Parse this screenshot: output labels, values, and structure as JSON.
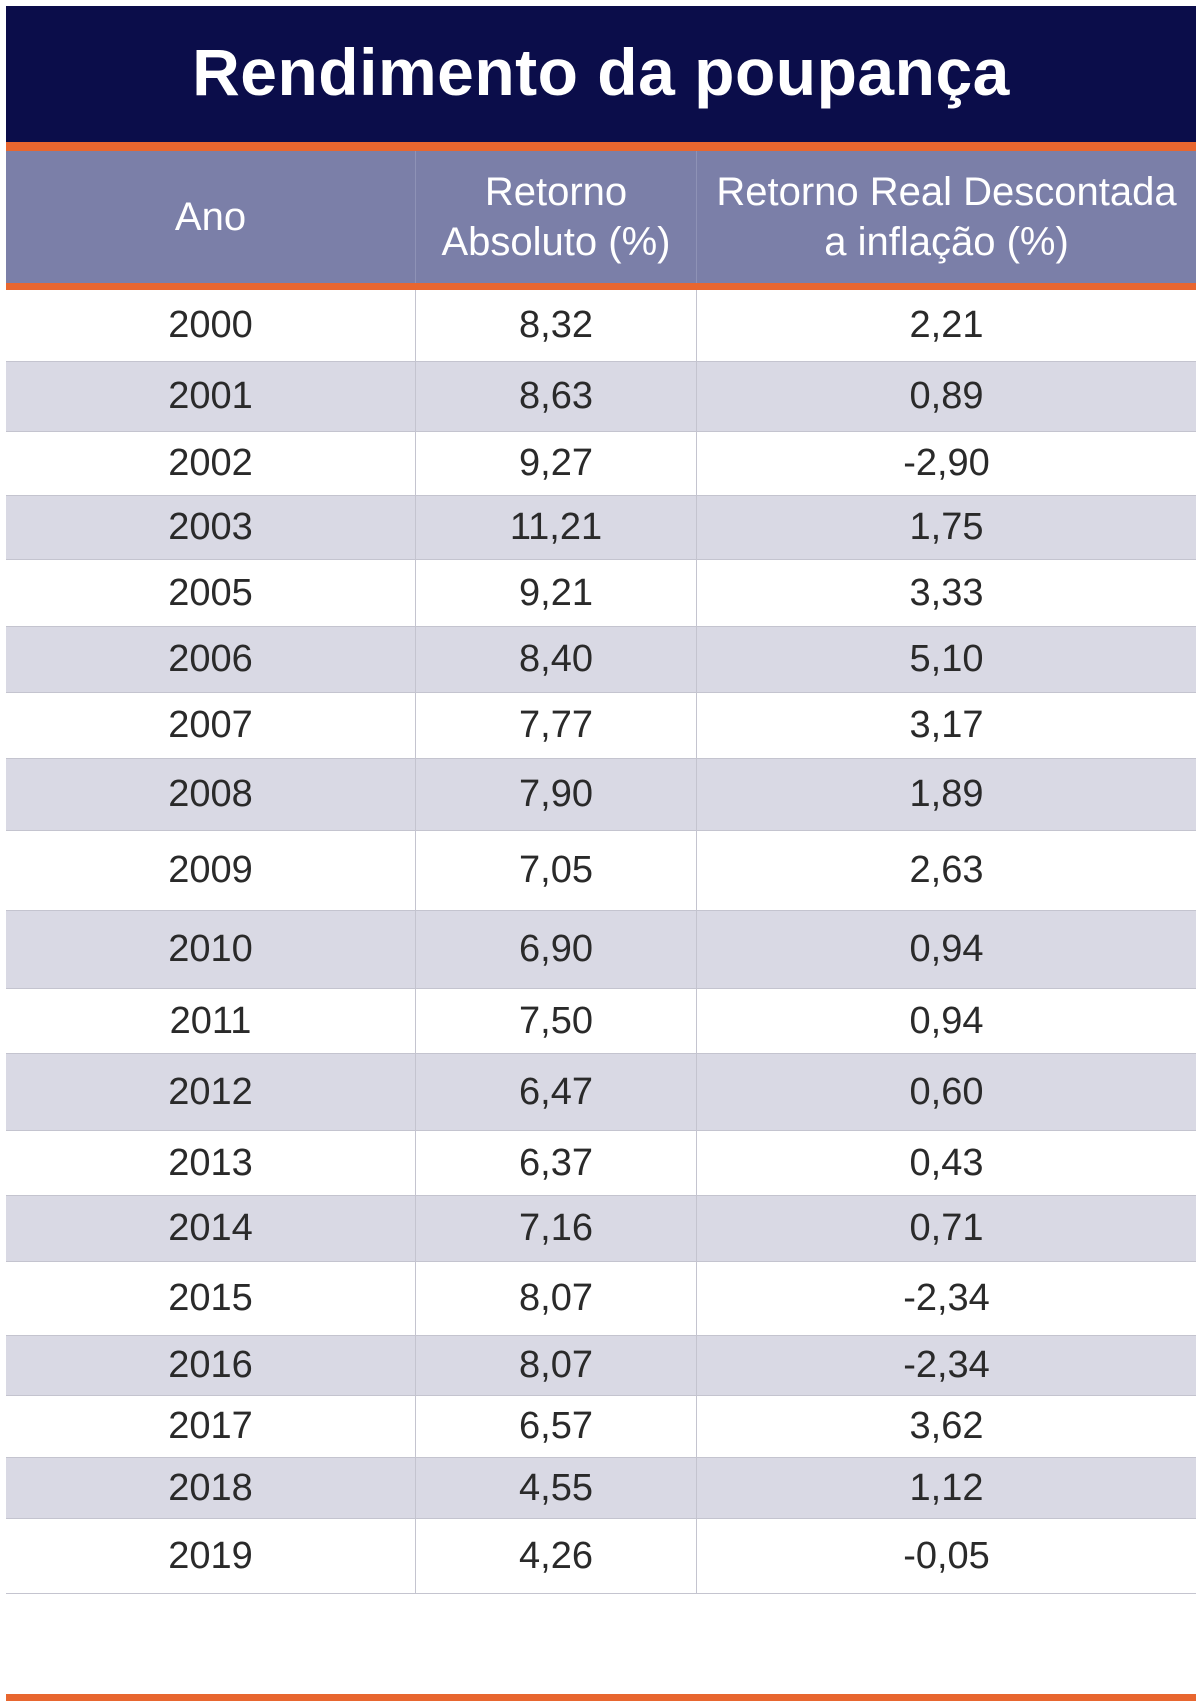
{
  "title": "Rendimento da poupança",
  "colors": {
    "title_background": "#0b0d4a",
    "header_background": "#7b7fa8",
    "accent_line": "#e8662f",
    "stripe": "#d9d9e4"
  },
  "columns": [
    "Ano",
    "Retorno\nAbsoluto (%)",
    "Retorno Real Descontada\na inflação (%)"
  ],
  "chart_data": {
    "type": "table",
    "title": "Rendimento da poupança",
    "columns": [
      "Ano",
      "Retorno Absoluto (%)",
      "Retorno Real Descontada a inflação (%)"
    ],
    "rows": [
      [
        "2000",
        "8,32",
        "2,21"
      ],
      [
        "2001",
        "8,63",
        "0,89"
      ],
      [
        "2002",
        "9,27",
        "-2,90"
      ],
      [
        "2003",
        "11,21",
        "1,75"
      ],
      [
        "2005",
        "9,21",
        "3,33"
      ],
      [
        "2006",
        "8,40",
        "5,10"
      ],
      [
        "2007",
        "7,77",
        "3,17"
      ],
      [
        "2008",
        "7,90",
        "1,89"
      ],
      [
        "2009",
        "7,05",
        "2,63"
      ],
      [
        "2010",
        "6,90",
        "0,94"
      ],
      [
        "2011",
        "7,50",
        "0,94"
      ],
      [
        "2012",
        "6,47",
        "0,60"
      ],
      [
        "2013",
        "6,37",
        "0,43"
      ],
      [
        "2014",
        "7,16",
        "0,71"
      ],
      [
        "2015",
        "8,07",
        "-2,34"
      ],
      [
        "2016",
        "8,07",
        "-2,34"
      ],
      [
        "2017",
        "6,57",
        "3,62"
      ],
      [
        "2018",
        "4,55",
        "1,12"
      ],
      [
        "2019",
        "4,26",
        "-0,05"
      ]
    ]
  }
}
